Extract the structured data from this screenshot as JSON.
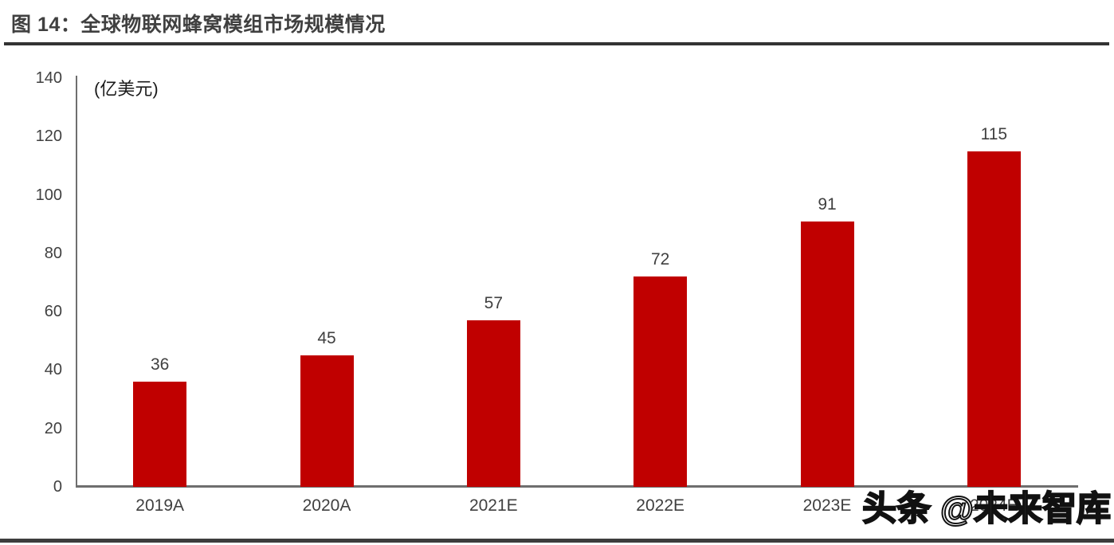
{
  "figure": {
    "title": "图 14：全球物联网蜂窝模组市场规模情况"
  },
  "chart_data": {
    "type": "bar",
    "title": "全球物联网蜂窝模组市场规模情况",
    "categories": [
      "2019A",
      "2020A",
      "2021E",
      "2022E",
      "2023E",
      "2024E"
    ],
    "values": [
      36,
      45,
      57,
      72,
      91,
      115
    ],
    "unit_label": "(亿美元)",
    "xlabel": "",
    "ylabel": "亿美元",
    "ylim": [
      0,
      140
    ],
    "y_ticks": [
      0,
      20,
      40,
      60,
      80,
      100,
      120,
      140
    ],
    "bar_color": "#c00000",
    "label_color": "#404040",
    "grid": false,
    "legend_position": "none"
  },
  "watermark": {
    "text": "头条 @未来智库"
  }
}
